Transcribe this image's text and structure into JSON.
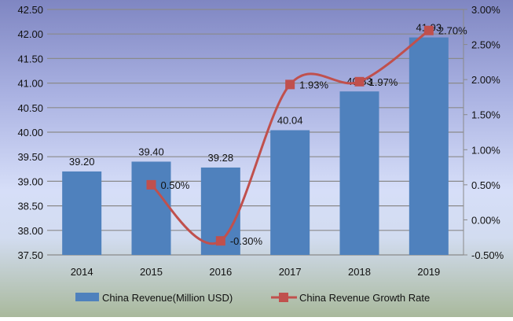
{
  "chart_data": {
    "type": "bar+line",
    "categories": [
      "2014",
      "2015",
      "2016",
      "2017",
      "2018",
      "2019"
    ],
    "series": [
      {
        "name": "China Revenue(Million USD)",
        "type": "bar",
        "axis": "left",
        "values": [
          39.2,
          39.4,
          39.28,
          40.04,
          40.83,
          41.93
        ],
        "labels": [
          "39.20",
          "39.40",
          "39.28",
          "40.04",
          "40.83",
          "41.93"
        ],
        "color": "#4f81bd"
      },
      {
        "name": "China Revenue Growth Rate",
        "type": "line",
        "axis": "right",
        "smooth": true,
        "values": [
          null,
          0.5,
          -0.3,
          1.93,
          1.97,
          2.7
        ],
        "labels": [
          "",
          "0.50%",
          "-0.30%",
          "1.93%",
          "1.97%",
          "2.70%"
        ],
        "color": "#c0504d"
      }
    ],
    "left_axis": {
      "range": [
        37.5,
        42.5
      ],
      "ticks": [
        "37.50",
        "38.00",
        "38.50",
        "39.00",
        "39.50",
        "40.00",
        "40.50",
        "41.00",
        "41.50",
        "42.00",
        "42.50"
      ]
    },
    "right_axis": {
      "range": [
        -0.5,
        3.0
      ],
      "ticks": [
        "-0.50%",
        "0.00%",
        "0.50%",
        "1.00%",
        "1.50%",
        "2.00%",
        "2.50%",
        "3.00%"
      ]
    },
    "grid": true,
    "legend": "bottom"
  }
}
